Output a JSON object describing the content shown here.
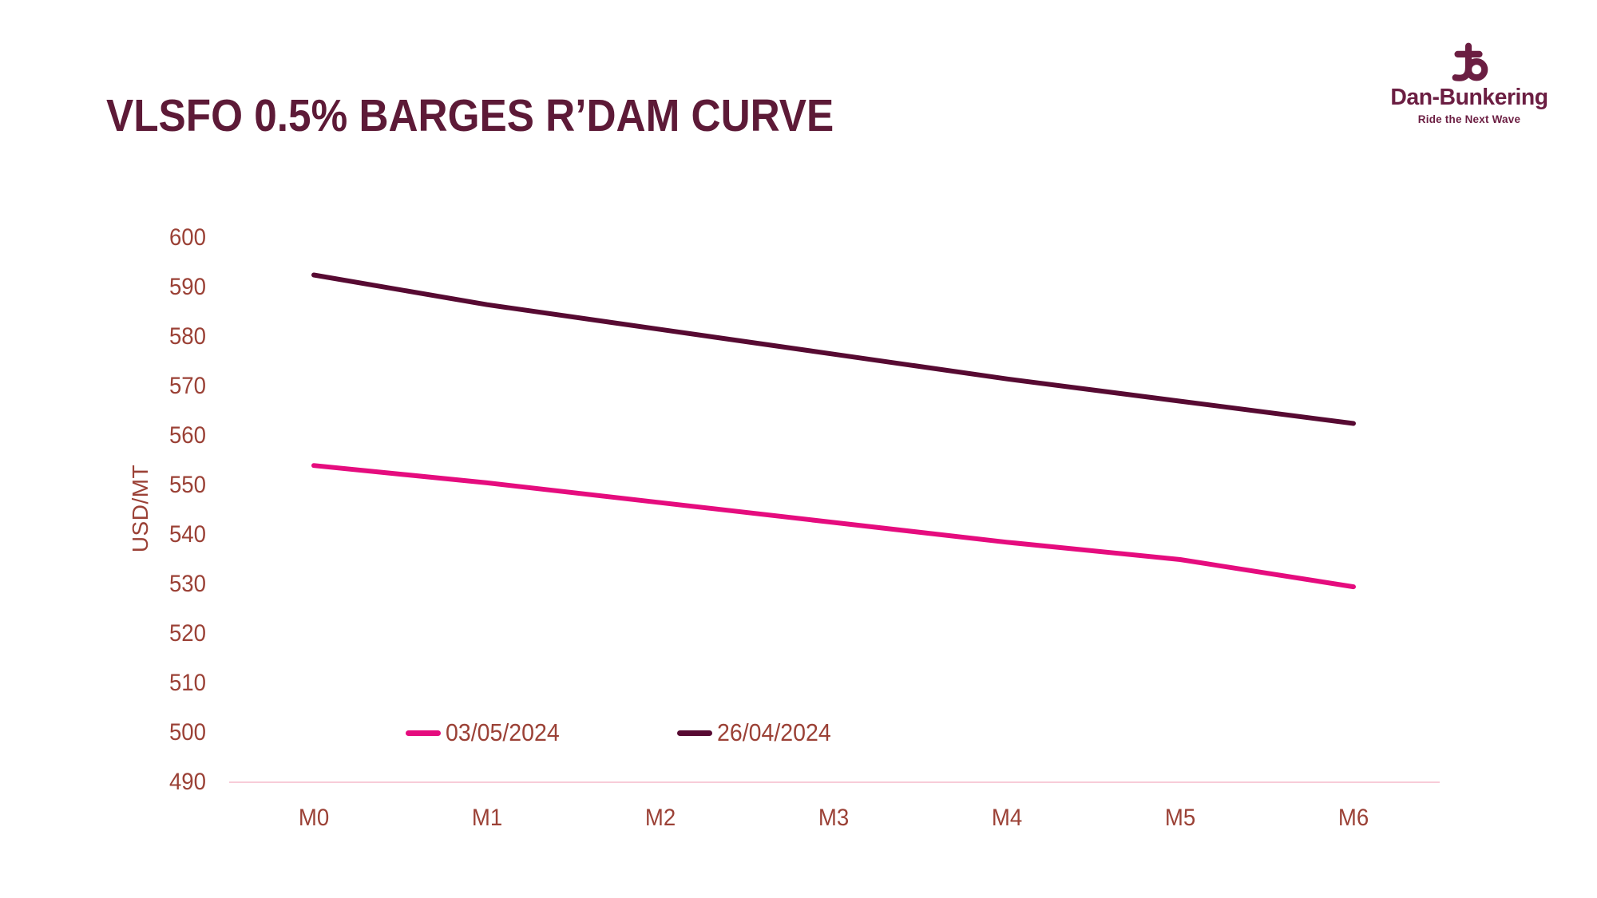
{
  "title": "VLSFO 0.5% BARGES R’DAM CURVE",
  "logo": {
    "name": "Dan-Bunkering",
    "tagline": "Ride the Next Wave",
    "color": "#6b1e42"
  },
  "colors": {
    "title_text": "#5d1a37",
    "axis_text": "#9b4136",
    "axis_line": "#f8ccd8",
    "series_pink": "#e50c7e",
    "series_maroon": "#570a32"
  },
  "chart_data": {
    "type": "line",
    "title": "VLSFO 0.5% BARGES R’DAM CURVE",
    "xlabel": "",
    "ylabel": "USD/MT",
    "categories": [
      "M0",
      "M1",
      "M2",
      "M3",
      "M4",
      "M5",
      "M6"
    ],
    "series": [
      {
        "name": "03/05/2024",
        "color": "#e50c7e",
        "values": [
          554,
          550.5,
          546.5,
          542.5,
          538.5,
          535,
          529.5
        ]
      },
      {
        "name": "26/04/2024",
        "color": "#570a32",
        "values": [
          592.5,
          586.5,
          581.5,
          576.5,
          571.5,
          567,
          562.5
        ]
      }
    ],
    "ylim": [
      490,
      600
    ],
    "yticks": [
      490,
      500,
      510,
      520,
      530,
      540,
      550,
      560,
      570,
      580,
      590,
      600
    ],
    "grid": false,
    "legend_position": "bottom-inside"
  }
}
